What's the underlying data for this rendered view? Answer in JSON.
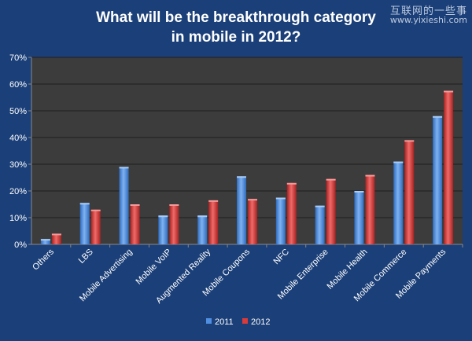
{
  "watermark": {
    "site_name": "互联网的一些事",
    "site_url": "www.yixieshi.com"
  },
  "chart_data": {
    "type": "bar",
    "title": "What will be the breakthrough category in mobile in 2012?",
    "title_lines": [
      "What will be the breakthrough category",
      "in mobile in 2012?"
    ],
    "categories": [
      "Others",
      "LBS",
      "Mobile Advertising",
      "Mobile VoIP",
      "Augmented Reality",
      "Mobile Coupons",
      "NFC",
      "Mobile Enterprise",
      "Mobile Health",
      "Mobile Commerce",
      "Mobile Payments"
    ],
    "series": [
      {
        "name": "2011",
        "values": [
          2,
          15.5,
          29,
          10.8,
          10.8,
          25.5,
          17.5,
          14.5,
          20,
          31,
          48
        ],
        "color": "#4f8ee0"
      },
      {
        "name": "2012",
        "values": [
          4,
          13,
          15,
          15,
          16.5,
          17,
          23,
          24.5,
          26,
          39,
          57.5
        ],
        "color": "#d93a3a"
      }
    ],
    "ylim": [
      0,
      70
    ],
    "yticks": [
      0,
      10,
      20,
      30,
      40,
      50,
      60,
      70
    ],
    "ytick_labels": [
      "0%",
      "10%",
      "20%",
      "30%",
      "40%",
      "50%",
      "60%",
      "70%"
    ],
    "xlabel": "",
    "ylabel": "",
    "grid": true,
    "legend_position": "bottom",
    "colors": {
      "background": "#1b3f78",
      "plot_area": "#3c3c3c",
      "gridline": "#1e1e1e",
      "text": "#ffffff"
    }
  }
}
